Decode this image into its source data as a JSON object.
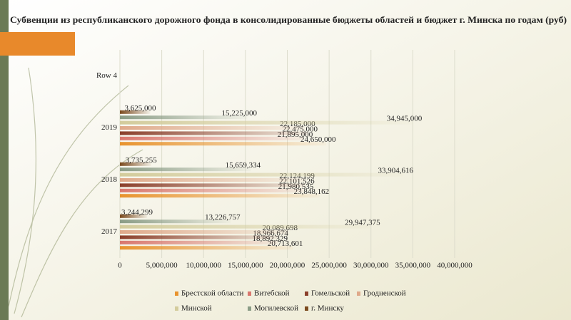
{
  "chart_data": {
    "type": "hbar",
    "title": "Субвенции из республиканского дорожного фонда в консолидированные бюджеты областей и бюджет г. Минска по годам (руб)",
    "categories": [
      "2017",
      "2018",
      "2019",
      "Row 4"
    ],
    "series": [
      {
        "name": "Брестской области",
        "color": "#e8932e",
        "values": [
          20713601,
          23848162,
          24650000,
          null
        ],
        "value_labels": [
          "20,713,601",
          "23,848,162",
          "24,650,000",
          null
        ]
      },
      {
        "name": "Витебской",
        "color": "#d9776e",
        "values": [
          18892329,
          21980535,
          21895000,
          null
        ],
        "value_labels": [
          "18,892,329",
          "21,980,535",
          "21,895,000",
          null
        ]
      },
      {
        "name": "Гомельской",
        "color": "#8b3f2b",
        "values": [
          18966674,
          22101526,
          22475000,
          null
        ],
        "value_labels": [
          "18,966,674",
          "22,101,526",
          "22,475,000",
          null
        ]
      },
      {
        "name": "Гродненской",
        "color": "#dfa98a",
        "values": [
          20089698,
          22124199,
          22185000,
          null
        ],
        "value_labels": [
          "20,089,698",
          "22,124,199",
          "22,185,000",
          null
        ]
      },
      {
        "name": "Минской",
        "color": "#d3cc9c",
        "values": [
          29947375,
          33904616,
          34945000,
          null
        ],
        "value_labels": [
          "29,947,375",
          "33,904,616",
          "34,945,000",
          null
        ]
      },
      {
        "name": "Могилевской",
        "color": "#8a9c86",
        "values": [
          13226757,
          15659334,
          15225000,
          null
        ],
        "value_labels": [
          "13,226,757",
          "15,659,334",
          "15,225,000",
          null
        ]
      },
      {
        "name": "г. Минску",
        "color": "#7b4a1e",
        "values": [
          3244299,
          3735255,
          3625000,
          null
        ],
        "value_labels": [
          "3,244,299",
          "3,735,255",
          "3,625,000",
          null
        ]
      }
    ],
    "xlim": [
      0,
      40000000
    ],
    "xticks": [
      0,
      {
        "value": 5000000,
        "label": "5,000,000"
      },
      {
        "value": 10000000,
        "label": "10,000,000"
      },
      {
        "value": 15000000,
        "label": "15,000,000"
      },
      {
        "value": 20000000,
        "label": "20,000,000"
      },
      {
        "value": 25000000,
        "label": "25,000,000"
      },
      {
        "value": 30000000,
        "label": "30,000,000"
      },
      {
        "value": 35000000,
        "label": "35,000,000"
      },
      {
        "value": 40000000,
        "label": "40,000,000"
      }
    ],
    "grid": true
  }
}
